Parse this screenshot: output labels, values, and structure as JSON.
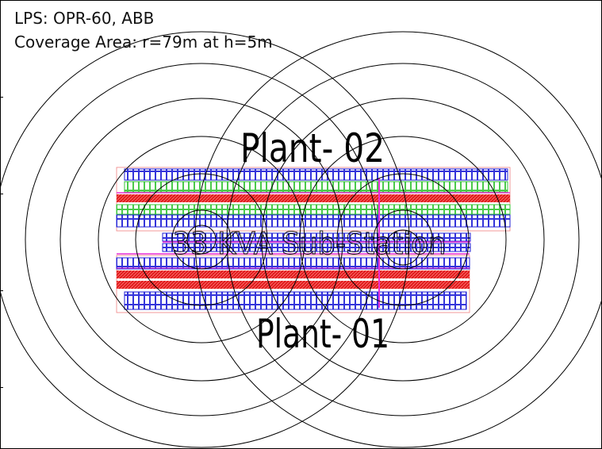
{
  "caption": {
    "line1": "LPS: OPR-60, ABB",
    "line2": "Coverage Area: r=79m at h=5m"
  },
  "labels": {
    "plant_top": "Plant- 02",
    "plant_bottom": "Plant- 01",
    "substation": "33 KVA Sub-Station"
  },
  "colors": {
    "rings": "#000000",
    "panel_outline": "#1f1fd6",
    "panel_fill_alt": "#36c436",
    "road": "#e01b1b",
    "boundary": "#e82ed6",
    "label": "#000000"
  },
  "lps_units": [
    {
      "name": "left-lps",
      "ring_count": 8
    },
    {
      "name": "right-lps",
      "ring_count": 8
    }
  ]
}
